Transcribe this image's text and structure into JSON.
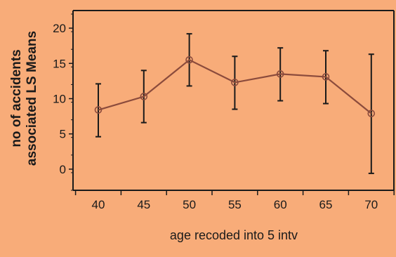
{
  "chart_data": {
    "type": "line",
    "title": "",
    "xlabel": "age recoded into 5 intv",
    "ylabel_lines": [
      "no of accidents",
      "associated LS Means"
    ],
    "categories": [
      "40",
      "45",
      "50",
      "55",
      "60",
      "65",
      "70"
    ],
    "yticks": [
      0,
      5,
      10,
      15,
      20
    ],
    "ylim": [
      -3,
      22.5
    ],
    "grid": false,
    "series": [
      {
        "values": [
          8.4,
          10.3,
          15.5,
          12.3,
          13.5,
          13.1,
          7.9
        ],
        "lower": [
          4.6,
          6.6,
          11.8,
          8.5,
          9.7,
          9.3,
          -0.6
        ],
        "upper": [
          12.1,
          14.0,
          19.2,
          16.0,
          17.2,
          16.8,
          16.3
        ]
      }
    ],
    "colors": {
      "background": "#F8AC79",
      "line": "#8B4B3C",
      "errorbar": "#1A1A1A",
      "axis": "#1A1A1A"
    }
  }
}
